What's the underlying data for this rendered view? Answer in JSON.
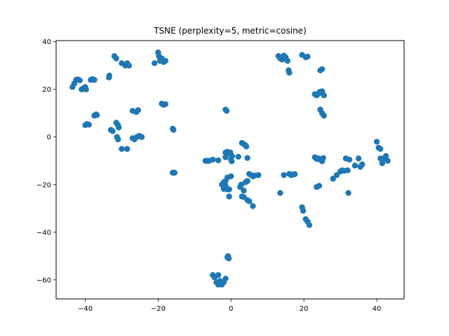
{
  "chart_data": {
    "type": "scatter",
    "title": "TSNE (perplexity=5, metric=cosine)",
    "xlabel": "",
    "ylabel": "",
    "xlim": [
      -48,
      47.5
    ],
    "ylim": [
      -68,
      40.5
    ],
    "xticks": [
      -40,
      -20,
      0,
      20,
      40
    ],
    "yticks": [
      -60,
      -40,
      -20,
      0,
      20,
      40
    ],
    "grid": false,
    "legend": "none",
    "marker_color": "#1f77b4",
    "series": [
      {
        "x": [
          -43.5,
          -43,
          -42.5,
          -42,
          -41.5,
          -41,
          -40.5,
          -40,
          -39.8,
          -38.5,
          -38,
          -37.5,
          -33.5,
          -33.4,
          -32,
          -31.5,
          -30,
          -29,
          -28.5,
          -28,
          -21,
          -20,
          -19.8,
          -19.5,
          -19,
          -18.5,
          -18,
          -19,
          -18.5,
          -18,
          -16,
          -15.8,
          -37.5,
          -37,
          -36.8,
          -40,
          -39.5,
          -39,
          -33,
          -32.5,
          -31.5,
          -31,
          -30.8,
          -31.3,
          -31,
          -30,
          -28.5,
          -27,
          -26.5,
          -25.8,
          -25.2,
          -24.5,
          -27,
          -26,
          -25.5,
          -16,
          -15.5,
          -1.5,
          -1.2,
          -7,
          -6.5,
          -6,
          -5,
          -3.5,
          -1.5,
          -1,
          -0.5,
          0,
          0.2,
          -1.5,
          -1,
          -0.2,
          0.3,
          2,
          3,
          3.5,
          4,
          4.2,
          4.5,
          -2.5,
          -2,
          -1.5,
          -1,
          -0.5,
          0,
          2.5,
          3,
          3.5,
          4,
          4.5,
          5,
          5.5,
          6,
          6.5,
          7.5,
          -2,
          -1.5,
          -1,
          -0.5,
          2.8,
          3.5,
          4.5,
          5,
          6,
          -1,
          -0.8,
          -0.6,
          -5,
          -4.5,
          -4,
          -3.5,
          -3,
          -2.5,
          -2,
          -1.5,
          -3.5,
          -3,
          13,
          13.5,
          14,
          14.5,
          15,
          15.5,
          15.8,
          16,
          19.5,
          20.5,
          21,
          24.5,
          25,
          16,
          16.5,
          23,
          23.5,
          24,
          24.5,
          25,
          25.5,
          24.2,
          24.5,
          25,
          25.5,
          23,
          23.5,
          24,
          24.5,
          25,
          25.3,
          13.5,
          14.5,
          16.5,
          17,
          17.5,
          23.5,
          24.2,
          19.5,
          19.8,
          20.5,
          21,
          21.5,
          28,
          29,
          30,
          30.5,
          31,
          31.5,
          32,
          32.5,
          32.2,
          34,
          35,
          36,
          35.5,
          40,
          40.5,
          41,
          41,
          41.5,
          42,
          42.5,
          43
        ],
        "y": [
          21,
          22.5,
          24,
          24.2,
          23.8,
          20,
          20.5,
          21,
          20,
          24,
          24.3,
          24,
          25,
          25.8,
          34,
          33,
          31,
          30,
          31,
          30,
          31,
          35.5,
          34,
          32,
          33,
          31.5,
          32,
          14,
          13.5,
          13.8,
          3.5,
          3,
          9,
          9.5,
          9.2,
          5,
          5.5,
          5.2,
          3,
          2.5,
          6,
          5,
          4,
          0,
          -1,
          -5,
          -5,
          -0.5,
          -1,
          0,
          0.5,
          0,
          11,
          10.5,
          11.3,
          -15,
          -15,
          11.5,
          11,
          -10,
          -10,
          -10,
          -9.5,
          -9.8,
          -6.5,
          -6.2,
          -7,
          -9.5,
          -10.2,
          -8.5,
          -7,
          -6.5,
          -8,
          -8.3,
          -2.5,
          -3,
          -3.5,
          -4,
          -8.8,
          -20,
          -21.8,
          -18.5,
          -17,
          -22,
          -16.5,
          -21,
          -25,
          -25.2,
          -19,
          -18.5,
          -15.5,
          -16,
          -16.5,
          -16.2,
          -16,
          -19,
          -20.5,
          -22,
          -25,
          -20,
          -22.5,
          -26.5,
          -27,
          -29,
          -50.5,
          -50,
          -51,
          -58,
          -59,
          -61,
          -62,
          -60.5,
          -62,
          -61,
          -59.5,
          -58,
          -61.5,
          34,
          33,
          32.5,
          34.2,
          33.5,
          32,
          28,
          27,
          34.5,
          33.5,
          33.8,
          28,
          28.5,
          -15.5,
          -15.8,
          18,
          17.5,
          18.2,
          19,
          19.2,
          17.5,
          18.7,
          11.5,
          10,
          9,
          -8.5,
          -9.2,
          -9,
          -9.5,
          -10.2,
          -8.8,
          -23.5,
          -16,
          -16,
          -15.8,
          -15.6,
          -21,
          -20.5,
          -29.5,
          -31,
          -34.5,
          -35.5,
          -37,
          -17.5,
          -16,
          -14.5,
          -14,
          -14.2,
          -9,
          -14,
          -9.5,
          -23.5,
          -12,
          -9,
          -11.5,
          -12.5,
          -2,
          -4.5,
          -5,
          -9,
          -11,
          -9,
          -8,
          -10
        ]
      }
    ]
  }
}
